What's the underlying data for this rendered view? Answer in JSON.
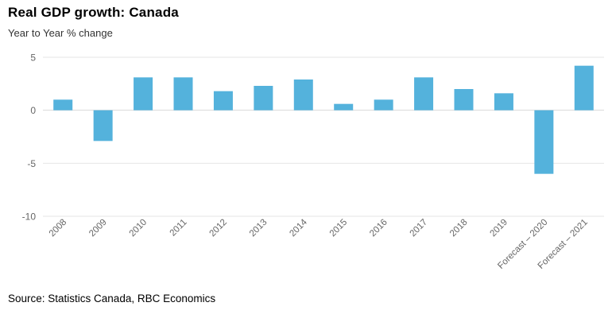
{
  "footer": {
    "source": "Source: Statistics Canada, RBC Economics"
  },
  "chart_data": {
    "type": "bar",
    "title": "Real GDP growth: Canada",
    "subtitle": "Year to Year % change",
    "categories": [
      "2008",
      "2009",
      "2010",
      "2011",
      "2012",
      "2013",
      "2014",
      "2015",
      "2016",
      "2017",
      "2018",
      "2019",
      "Forecast – 2020",
      "Forecast – 2021"
    ],
    "values": [
      1.0,
      -2.9,
      3.1,
      3.1,
      1.8,
      2.3,
      2.9,
      0.6,
      1.0,
      3.1,
      2.0,
      1.6,
      -6.0,
      4.2
    ],
    "xlabel": "",
    "ylabel": "",
    "ylim": [
      -10,
      5
    ],
    "yticks": [
      5,
      0,
      -5,
      -10
    ],
    "grid": true,
    "legend_position": "none",
    "x_label_rotation": -45,
    "bar_color": "#54b2dc",
    "grid_color": "#e6e6e6",
    "zero_line_color": "#d9d9d9",
    "axis_label_color": "#666666"
  }
}
